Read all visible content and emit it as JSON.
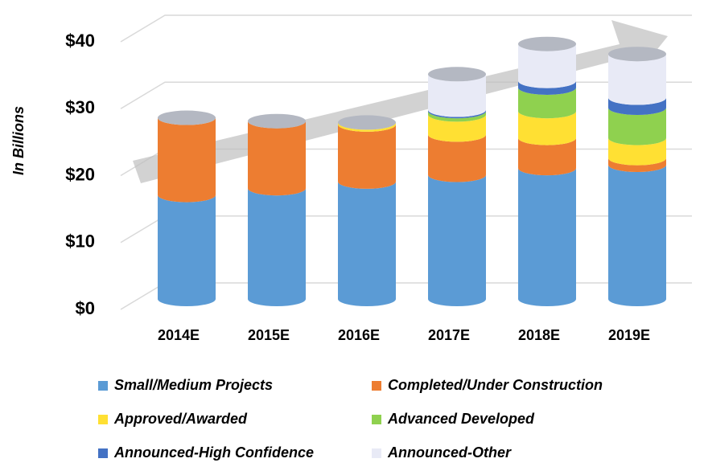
{
  "chart_data": {
    "type": "bar",
    "stacked": true,
    "y_axis_label": "In Billions",
    "categories": [
      "2014E",
      "2015E",
      "2016E",
      "2017E",
      "2018E",
      "2019E"
    ],
    "series": [
      {
        "name": "Small/Medium Projects",
        "color": "#5b9bd5",
        "values": [
          15.5,
          16.5,
          17.5,
          18.5,
          19.5,
          20
        ]
      },
      {
        "name": "Completed/Under Construction",
        "color": "#ed7d31",
        "values": [
          11.5,
          10,
          8.5,
          6,
          4.5,
          1
        ]
      },
      {
        "name": "Approved/Awarded",
        "color": "#ffe033",
        "values": [
          0,
          0,
          0.3,
          3,
          4,
          3
        ]
      },
      {
        "name": "Advanced Developed",
        "color": "#8fd14f",
        "values": [
          0,
          0,
          0,
          0.5,
          3.5,
          4.5
        ]
      },
      {
        "name": "Announced-High Confidence",
        "color": "#4472c4",
        "values": [
          0,
          0,
          0,
          0.2,
          1,
          1.5
        ]
      },
      {
        "name": "Announced-Other",
        "color": "#e8eaf6",
        "values": [
          0,
          0,
          0,
          5.3,
          5.5,
          6.5
        ]
      }
    ],
    "ylim": [
      0,
      40
    ],
    "yticks": [
      {
        "value": 0,
        "label": "$0"
      },
      {
        "value": 10,
        "label": "$10"
      },
      {
        "value": 20,
        "label": "$20"
      },
      {
        "value": 30,
        "label": "$30"
      },
      {
        "value": 40,
        "label": "$40"
      }
    ],
    "grid": true
  }
}
